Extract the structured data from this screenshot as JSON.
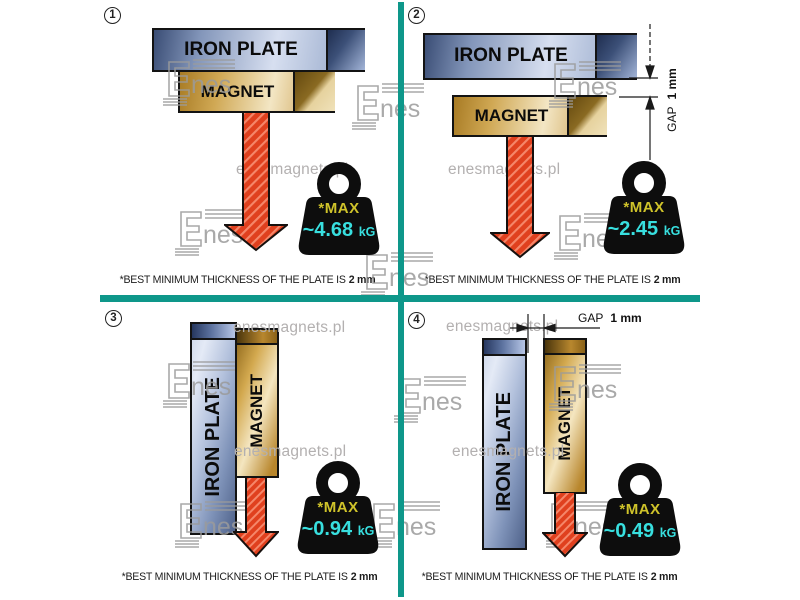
{
  "watermark": {
    "brand_e": "E",
    "brand_nes": "nes",
    "site": "enesmagnets.pl"
  },
  "colors": {
    "divider": "#0e978a",
    "arrow": "#e0401e",
    "weight_body": "#0d0d0d",
    "max_label_color": "#cfc32a",
    "value_color": "#38dfdf",
    "plate_blue_dark": "#3a4d75",
    "plate_blue_light": "#d7dff0",
    "magnet_gold_dark": "#a87b24",
    "magnet_gold_light": "#f3e6c4"
  },
  "quadrants": [
    {
      "number": "1",
      "plate_label": "IRON PLATE",
      "magnet_label": "MAGNET",
      "weight": {
        "max_label": "*MAX",
        "value": "~4.68",
        "unit": "kG"
      },
      "note": {
        "text": "*BEST MINIMUM THICKNESS OF THE PLATE IS",
        "bold": "2 mm"
      }
    },
    {
      "number": "2",
      "plate_label": "IRON PLATE",
      "magnet_label": "MAGNET",
      "gap": {
        "label": "GAP",
        "bold": "1 mm"
      },
      "weight": {
        "max_label": "*MAX",
        "value": "~2.45",
        "unit": "kG"
      },
      "note": {
        "text": "*BEST MINIMUM THICKNESS OF THE PLATE IS",
        "bold": "2 mm"
      }
    },
    {
      "number": "3",
      "plate_label": "IRON PLATE",
      "magnet_label": "MAGNET",
      "weight": {
        "max_label": "*MAX",
        "value": "~0.94",
        "unit": "kG"
      },
      "note": {
        "text": "*BEST MINIMUM THICKNESS OF THE PLATE IS",
        "bold": "2 mm"
      }
    },
    {
      "number": "4",
      "plate_label": "IRON PLATE",
      "magnet_label": "MAGNET",
      "gap": {
        "label": "GAP",
        "bold": "1 mm"
      },
      "weight": {
        "max_label": "*MAX",
        "value": "~0.49",
        "unit": "kG"
      },
      "note": {
        "text": "*BEST MINIMUM THICKNESS OF THE PLATE IS",
        "bold": "2 mm"
      }
    }
  ]
}
